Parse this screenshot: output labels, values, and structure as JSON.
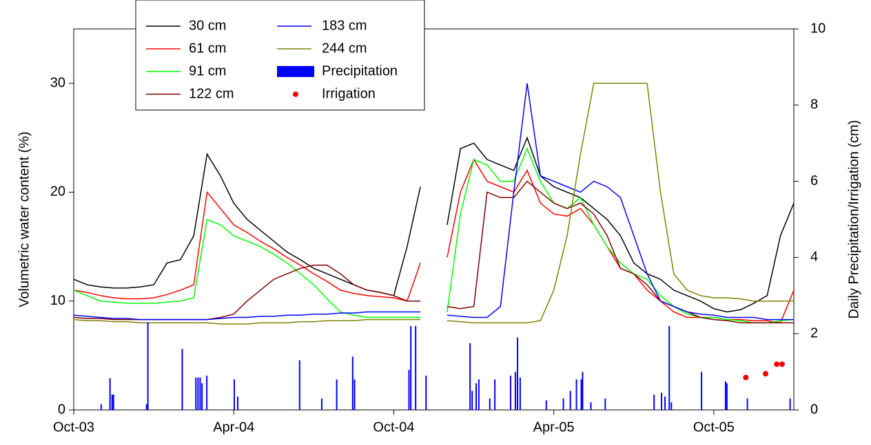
{
  "chart_data": {
    "type": "line",
    "y_label": "Volumetric water content (%)",
    "y2_label": "Daily Precipitation/Irrigation (cm)",
    "xlim": [
      0,
      27
    ],
    "xticks": [
      {
        "value": 0,
        "label": "Oct-03"
      },
      {
        "value": 6,
        "label": "Apr-04"
      },
      {
        "value": 12,
        "label": "Oct-04"
      },
      {
        "value": 18,
        "label": "Apr-05"
      },
      {
        "value": 24,
        "label": "Oct-05"
      }
    ],
    "ylim": [
      0,
      35
    ],
    "yticks": [
      0,
      10,
      20,
      30
    ],
    "y2lim": [
      0,
      10
    ],
    "y2ticks": [
      0,
      2,
      4,
      6,
      8,
      10
    ],
    "legend": "upper left",
    "x": [
      0,
      0.5,
      1,
      1.5,
      2,
      2.5,
      3,
      3.5,
      4,
      4.5,
      5,
      5.5,
      6,
      6.5,
      7,
      7.5,
      8,
      8.5,
      9,
      9.5,
      10,
      10.5,
      11,
      11.5,
      12,
      12.5,
      13,
      13.5,
      14,
      14.5,
      15,
      15.5,
      16,
      16.5,
      17,
      17.5,
      18,
      18.5,
      19,
      19.5,
      20,
      20.5,
      21,
      21.5,
      22,
      22.5,
      23,
      23.5,
      24,
      24.5,
      25,
      25.5,
      26,
      26.5,
      27
    ],
    "series": [
      {
        "name": "30 cm",
        "color": "#000000",
        "values": [
          12,
          11.5,
          11.3,
          11.2,
          11.2,
          11.3,
          11.5,
          13.5,
          13.8,
          16,
          23.5,
          21.5,
          19,
          17.5,
          16.5,
          15.5,
          14.5,
          13.8,
          13,
          12.5,
          12,
          11.5,
          11,
          10.8,
          10.5,
          15,
          20.5,
          null,
          17,
          24,
          24.5,
          23,
          22.5,
          22,
          25,
          21.5,
          20.5,
          20,
          19.5,
          18.5,
          17.5,
          16,
          13.5,
          12.5,
          12,
          11,
          10.5,
          10,
          9.3,
          9,
          9.2,
          9.8,
          10.5,
          16,
          19
        ]
      },
      {
        "name": "61 cm",
        "color": "#ff0000",
        "values": [
          11,
          10.8,
          10.5,
          10.3,
          10.2,
          10.2,
          10.3,
          10.6,
          11,
          11.5,
          20,
          18.5,
          17,
          16.3,
          15.5,
          14.8,
          14,
          13.3,
          12.5,
          11.8,
          11,
          10.7,
          10.5,
          10.4,
          10.3,
          10,
          13.5,
          null,
          14,
          20,
          23,
          21,
          20.5,
          20,
          22,
          19,
          18,
          17.8,
          18.5,
          17,
          15,
          13,
          12.5,
          11,
          10,
          9,
          8.5,
          8.5,
          8.5,
          8.3,
          8.3,
          8.2,
          8.2,
          8,
          11
        ]
      },
      {
        "name": "91 cm",
        "color": "#00ff00",
        "values": [
          11,
          10.5,
          10,
          9.9,
          9.8,
          9.8,
          9.8,
          9.9,
          10,
          10.3,
          17.5,
          17,
          16,
          15.5,
          15,
          14.3,
          13.5,
          12.5,
          11.5,
          10.2,
          9,
          8.7,
          8.5,
          8.5,
          8.5,
          8.5,
          8.5,
          null,
          9,
          18,
          23,
          22.5,
          21,
          21,
          24,
          21,
          19,
          18.5,
          19.5,
          17,
          15,
          13.5,
          12.5,
          12,
          10.5,
          9.5,
          8.8,
          8.5,
          8.5,
          8.3,
          8.2,
          8,
          8,
          8.2,
          8.3
        ]
      },
      {
        "name": "122 cm",
        "color": "#7f0000",
        "values": [
          8.5,
          8.4,
          8.4,
          8.3,
          8.3,
          8.3,
          8.3,
          8.3,
          8.3,
          8.3,
          8.3,
          8.5,
          8.8,
          10,
          11,
          12,
          12.5,
          13,
          13.3,
          13.3,
          12.5,
          11.5,
          11,
          10.8,
          10.5,
          10,
          10,
          null,
          9.5,
          9.3,
          9.5,
          20,
          19.5,
          19.5,
          21,
          20,
          19,
          18.5,
          19,
          18,
          16,
          13,
          12.5,
          11.5,
          10,
          9.5,
          9,
          8.5,
          8.3,
          8.2,
          8,
          8,
          8,
          8,
          8
        ]
      },
      {
        "name": "183 cm",
        "color": "#0000ff",
        "values": [
          8.7,
          8.6,
          8.5,
          8.4,
          8.4,
          8.3,
          8.3,
          8.3,
          8.3,
          8.3,
          8.3,
          8.4,
          8.5,
          8.5,
          8.6,
          8.6,
          8.7,
          8.7,
          8.8,
          8.8,
          8.9,
          8.9,
          9,
          9,
          9,
          9,
          9,
          null,
          8.7,
          8.6,
          8.5,
          8.5,
          9.5,
          20,
          30,
          21.5,
          21,
          20.5,
          20,
          21,
          20.5,
          19.5,
          16,
          12.5,
          10,
          9.5,
          9,
          8.8,
          8.7,
          8.5,
          8.5,
          8.5,
          8.3,
          8.3,
          8.3
        ]
      },
      {
        "name": "244 cm",
        "color": "#808000",
        "values": [
          8.3,
          8.2,
          8.2,
          8.1,
          8.1,
          8,
          8,
          8,
          8,
          8,
          8,
          7.9,
          7.9,
          7.9,
          8,
          8,
          8,
          8.1,
          8.1,
          8.2,
          8.2,
          8.2,
          8.3,
          8.3,
          8.3,
          8.3,
          8.3,
          null,
          8.2,
          8.1,
          8,
          8,
          8,
          8,
          8,
          8.2,
          11,
          16,
          23.5,
          30,
          30,
          30,
          30,
          30,
          20,
          12.5,
          11,
          10.5,
          10.3,
          10.3,
          10.2,
          10,
          10,
          10,
          10
        ]
      },
      {
        "name": "Precipitation",
        "type": "bar",
        "axis": "y2",
        "color": "#0000ff",
        "x": [
          1.03,
          1.36,
          1.44,
          1.49,
          2.73,
          2.78,
          4.07,
          4.58,
          4.66,
          4.74,
          4.81,
          4.99,
          6.02,
          6.15,
          8.47,
          9.3,
          9.86,
          10.46,
          10.53,
          12.57,
          12.64,
          12.82,
          13.21,
          14.86,
          14.94,
          15.09,
          15.19,
          15.6,
          15.79,
          16.38,
          16.56,
          16.64,
          16.74,
          17.72,
          18.36,
          18.62,
          18.85,
          19.03,
          19.08,
          19.39,
          19.93,
          21.76,
          22.04,
          22.17,
          22.33,
          22.41,
          23.54,
          24.44,
          24.49,
          25.26,
          26.86
        ],
        "values": [
          0.15,
          0.83,
          0.4,
          0.4,
          0.15,
          2.3,
          1.6,
          0.85,
          0.85,
          0.85,
          0.7,
          0.9,
          0.8,
          0.35,
          1.3,
          0.3,
          0.8,
          1.4,
          0.8,
          1.05,
          2.2,
          2.2,
          0.9,
          1.75,
          0.5,
          0.7,
          0.8,
          0.3,
          0.8,
          0.9,
          1.0,
          1.9,
          0.85,
          0.25,
          0.3,
          0.5,
          0.8,
          0.8,
          1.0,
          0.2,
          0.3,
          0.4,
          0.45,
          0.35,
          2.2,
          0.2,
          1.0,
          0.75,
          0.7,
          0.3,
          0.3
        ]
      },
      {
        "name": "Irrigation",
        "type": "scatter",
        "axis": "y2",
        "color": "#ff0000",
        "x": [
          25.2,
          25.94,
          26.36,
          26.56
        ],
        "values": [
          0.85,
          0.95,
          1.2,
          1.2
        ]
      }
    ]
  }
}
